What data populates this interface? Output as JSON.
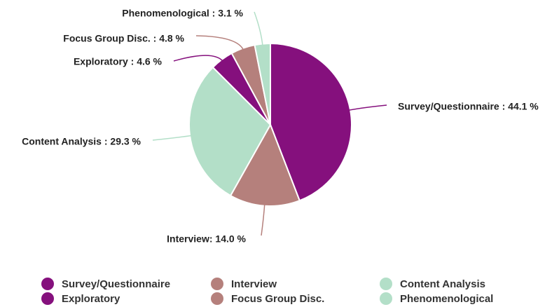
{
  "chart_data": {
    "type": "pie",
    "categories": [
      "Survey/Questionnaire",
      "Interview",
      "Content Analysis",
      "Exploratory",
      "Focus Group Disc.",
      "Phenomenological"
    ],
    "values": [
      44.1,
      14.0,
      29.3,
      4.6,
      4.8,
      3.1
    ],
    "value_labels": [
      "Survey/Questionnaire : 44.1 %",
      "Interview: 14.0 %",
      "Content Analysis : 29.3 %",
      "Exploratory : 4.6 %",
      "Focus Group Disc. : 4.8 %",
      "Phenomenological : 3.1 %"
    ],
    "colors": [
      "#85107d",
      "#b5807c",
      "#b3dfc8",
      "#85107d",
      "#b5807c",
      "#b3dfc8"
    ],
    "legend": "bottom"
  }
}
